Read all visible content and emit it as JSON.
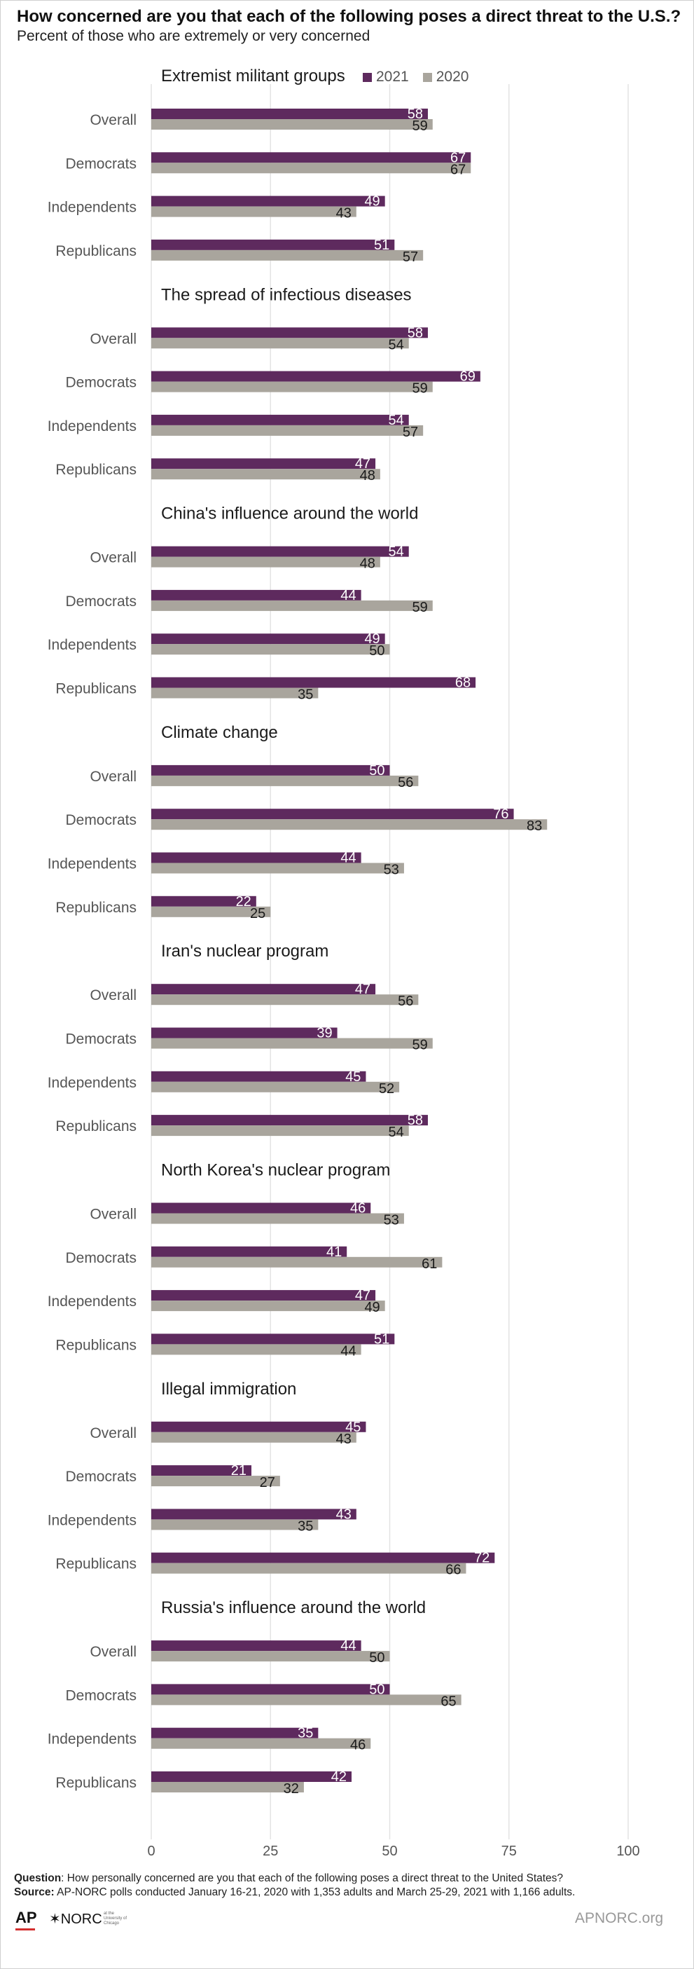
{
  "title": "How concerned are you that each of the following poses a direct threat to the U.S.?",
  "subtitle": "Percent of those who are extremely or very concerned",
  "colors": {
    "y2021": "#5e2a5e",
    "y2020": "#a9a59d",
    "grid": "#e3e3e3",
    "label": "#555555"
  },
  "chart_data": {
    "type": "bar",
    "orientation": "horizontal",
    "series": [
      {
        "name": "2021"
      },
      {
        "name": "2020"
      }
    ],
    "xlim": [
      0,
      100
    ],
    "xticks": [
      0,
      25,
      50,
      75,
      100
    ],
    "groups": [
      {
        "title": "Extremist militant groups",
        "rows": [
          {
            "label": "Overall",
            "v2021": 58,
            "v2020": 59
          },
          {
            "label": "Democrats",
            "v2021": 67,
            "v2020": 67
          },
          {
            "label": "Independents",
            "v2021": 49,
            "v2020": 43
          },
          {
            "label": "Republicans",
            "v2021": 51,
            "v2020": 57
          }
        ]
      },
      {
        "title": "The spread of infectious diseases",
        "rows": [
          {
            "label": "Overall",
            "v2021": 58,
            "v2020": 54
          },
          {
            "label": "Democrats",
            "v2021": 69,
            "v2020": 59
          },
          {
            "label": "Independents",
            "v2021": 54,
            "v2020": 57
          },
          {
            "label": "Republicans",
            "v2021": 47,
            "v2020": 48
          }
        ]
      },
      {
        "title": "China's influence around the world",
        "rows": [
          {
            "label": "Overall",
            "v2021": 54,
            "v2020": 48
          },
          {
            "label": "Democrats",
            "v2021": 44,
            "v2020": 59
          },
          {
            "label": "Independents",
            "v2021": 49,
            "v2020": 50
          },
          {
            "label": "Republicans",
            "v2021": 68,
            "v2020": 35
          }
        ]
      },
      {
        "title": "Climate change",
        "rows": [
          {
            "label": "Overall",
            "v2021": 50,
            "v2020": 56
          },
          {
            "label": "Democrats",
            "v2021": 76,
            "v2020": 83
          },
          {
            "label": "Independents",
            "v2021": 44,
            "v2020": 53
          },
          {
            "label": "Republicans",
            "v2021": 22,
            "v2020": 25
          }
        ]
      },
      {
        "title": "Iran's nuclear program",
        "rows": [
          {
            "label": "Overall",
            "v2021": 47,
            "v2020": 56
          },
          {
            "label": "Democrats",
            "v2021": 39,
            "v2020": 59
          },
          {
            "label": "Independents",
            "v2021": 45,
            "v2020": 52
          },
          {
            "label": "Republicans",
            "v2021": 58,
            "v2020": 54
          }
        ]
      },
      {
        "title": "North Korea's nuclear program",
        "rows": [
          {
            "label": "Overall",
            "v2021": 46,
            "v2020": 53
          },
          {
            "label": "Democrats",
            "v2021": 41,
            "v2020": 61
          },
          {
            "label": "Independents",
            "v2021": 47,
            "v2020": 49
          },
          {
            "label": "Republicans",
            "v2021": 51,
            "v2020": 44
          }
        ]
      },
      {
        "title": "Illegal immigration",
        "rows": [
          {
            "label": "Overall",
            "v2021": 45,
            "v2020": 43
          },
          {
            "label": "Democrats",
            "v2021": 21,
            "v2020": 27
          },
          {
            "label": "Independents",
            "v2021": 43,
            "v2020": 35
          },
          {
            "label": "Republicans",
            "v2021": 72,
            "v2020": 66
          }
        ]
      },
      {
        "title": "Russia's influence around the world",
        "rows": [
          {
            "label": "Overall",
            "v2021": 44,
            "v2020": 50
          },
          {
            "label": "Democrats",
            "v2021": 50,
            "v2020": 65
          },
          {
            "label": "Independents",
            "v2021": 35,
            "v2020": 46
          },
          {
            "label": "Republicans",
            "v2021": 42,
            "v2020": 32
          }
        ]
      }
    ]
  },
  "footer": {
    "question_label": "Question",
    "question_text": ": How personally concerned are you that each of the following poses a direct threat to the United States?",
    "source_label": "Source:",
    "source_text": " AP-NORC polls conducted January 16-21, 2020 with 1,353 adults and March 25-29, 2021 with 1,166 adults."
  },
  "logos": {
    "ap": "AP",
    "norc": "✶NORC",
    "norc_small": "at the University of Chicago",
    "site": "APNORC.org"
  }
}
